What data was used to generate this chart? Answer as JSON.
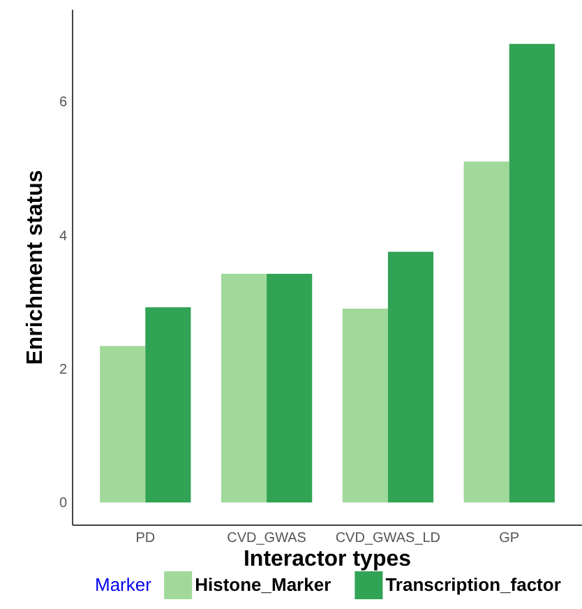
{
  "chart_data": {
    "type": "bar",
    "xlabel": "Interactor types",
    "ylabel": "Enrichment status",
    "legend_title": "Marker",
    "legend": "bottom",
    "grid": false,
    "categories": [
      "PD",
      "CVD_GWAS",
      "CVD_GWAS_LD",
      "GP"
    ],
    "series": [
      {
        "name": "Histone_Marker",
        "color": "#a1d99b",
        "values": [
          2.34,
          3.42,
          2.9,
          5.1
        ]
      },
      {
        "name": "Transcription_factor",
        "color": "#31a354",
        "values": [
          2.92,
          3.42,
          3.75,
          6.86
        ]
      }
    ],
    "ylim": [
      -0.34,
      7.37
    ],
    "yticks": [
      0,
      2,
      4,
      6
    ]
  }
}
